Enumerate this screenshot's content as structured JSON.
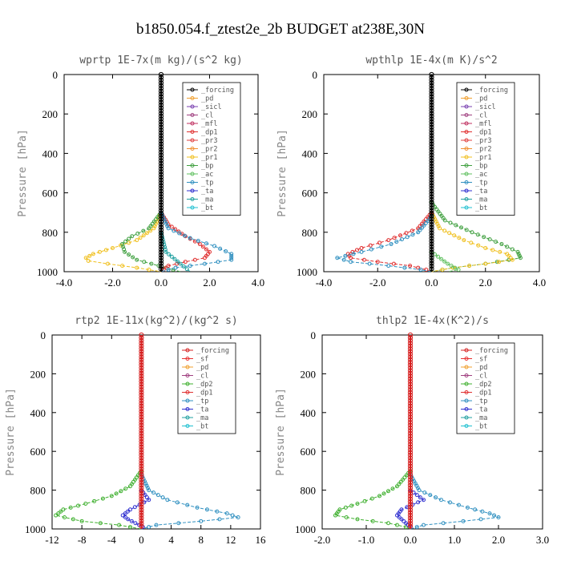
{
  "figure_title": "b1850.054.f_ztest2e_2b  BUDGET at238E,30N",
  "colors": {
    "forcing": "#d62020",
    "sf": "#e83030",
    "pd": "#f0a030",
    "sicl": "#7a40b0",
    "cl": "#a04080",
    "mfl": "#c03060",
    "dp1": "#e03030",
    "dp2": "#40b030",
    "pr1": "#f0c020",
    "pr2": "#f09030",
    "pr3": "#e04040",
    "bp": "#40a040",
    "ac": "#60c060",
    "tp": "#3090c0",
    "ta": "#3030d0",
    "ma": "#20a0a0",
    "bt": "#20c0d0",
    "black": "#000000"
  },
  "chart_data": [
    {
      "type": "line",
      "title": "wprtp  1E-7x(m kg)/(s^2 kg)",
      "ylabel": "Pressure [hPa]",
      "xlim": [
        -4.0,
        4.0
      ],
      "ylim": [
        1000,
        0
      ],
      "xticks": [
        "-4.0",
        "-2.0",
        "0.0",
        "2.0",
        "4.0"
      ],
      "yticks": [
        "0",
        "200",
        "400",
        "600",
        "800",
        "1000"
      ],
      "legend": [
        "_forcing",
        "_pd",
        "_sicl",
        "_cl",
        "_mfl",
        "_dp1",
        "_pr3",
        "_pr2",
        "_pr1",
        "_bp",
        "_ac",
        "_tp",
        "_ta",
        "_ma",
        "_bt"
      ],
      "legend_colors": [
        "black",
        "pd",
        "sicl",
        "cl",
        "mfl",
        "dp1",
        "pr3",
        "pr2",
        "pr1",
        "bp",
        "ac",
        "tp",
        "ta",
        "ma",
        "bt"
      ],
      "series": [
        {
          "name": "_pr1",
          "color": "pr1",
          "p": [
            700,
            780,
            840,
            880,
            910,
            930,
            945,
            960,
            980,
            1000
          ],
          "x": [
            0,
            -0.3,
            -1.0,
            -2.0,
            -2.8,
            -3.1,
            -3.0,
            -2.2,
            -1.0,
            0
          ]
        },
        {
          "name": "_bp",
          "color": "bp",
          "p": [
            700,
            780,
            820,
            860,
            900,
            940,
            960,
            980,
            1000
          ],
          "x": [
            0,
            -0.5,
            -1.2,
            -1.6,
            -1.5,
            -1.0,
            -0.4,
            0.2,
            0.8
          ]
        },
        {
          "name": "_dp1",
          "color": "dp1",
          "p": [
            700,
            760,
            820,
            860,
            900,
            930,
            950,
            970,
            1000
          ],
          "x": [
            0,
            0.3,
            1.0,
            1.6,
            2.0,
            1.8,
            1.0,
            0.3,
            0
          ]
        },
        {
          "name": "_tp",
          "color": "tp",
          "p": [
            700,
            780,
            830,
            870,
            910,
            940,
            960,
            980,
            1000
          ],
          "x": [
            0,
            0.3,
            1.2,
            2.2,
            2.9,
            2.9,
            1.8,
            0.6,
            0
          ]
        },
        {
          "name": "_ma",
          "color": "ma",
          "p": [
            800,
            900,
            960,
            1000
          ],
          "x": [
            0,
            0.2,
            0.8,
            1.2
          ]
        },
        {
          "name": "_forcing",
          "color": "black",
          "p": [
            0,
            1000
          ],
          "x": [
            0,
            0
          ]
        }
      ]
    },
    {
      "type": "line",
      "title": "wpthlp  1E-4x(m K)/s^2",
      "ylabel": "Pressure [hPa]",
      "xlim": [
        -4.0,
        4.0
      ],
      "ylim": [
        1000,
        0
      ],
      "xticks": [
        "-4.0",
        "-2.0",
        "0.0",
        "2.0",
        "4.0"
      ],
      "yticks": [
        "0",
        "200",
        "400",
        "600",
        "800",
        "1000"
      ],
      "legend": [
        "_forcing",
        "_pd",
        "_sicl",
        "_cl",
        "_mfl",
        "_dp1",
        "_pr3",
        "_pr2",
        "_pr1",
        "_bp",
        "_ac",
        "_tp",
        "_ta",
        "_ma",
        "_bt"
      ],
      "legend_colors": [
        "black",
        "pd",
        "sicl",
        "cl",
        "mfl",
        "dp1",
        "pr3",
        "pr2",
        "pr1",
        "bp",
        "ac",
        "tp",
        "ta",
        "ma",
        "bt"
      ],
      "series": [
        {
          "name": "_bp",
          "color": "bp",
          "p": [
            650,
            740,
            800,
            860,
            900,
            930,
            960,
            980,
            1000
          ],
          "x": [
            0,
            0.5,
            1.5,
            2.6,
            3.2,
            3.3,
            2.0,
            0.8,
            0
          ]
        },
        {
          "name": "_pr1",
          "color": "pr1",
          "p": [
            700,
            780,
            840,
            880,
            910,
            940,
            960,
            980,
            1000
          ],
          "x": [
            0,
            0.3,
            1.2,
            2.0,
            2.8,
            3.0,
            2.0,
            0.8,
            0
          ]
        },
        {
          "name": "_dp1",
          "color": "dp1",
          "p": [
            700,
            780,
            840,
            880,
            910,
            930,
            950,
            970,
            990,
            1000
          ],
          "x": [
            0,
            -0.5,
            -1.6,
            -2.6,
            -3.1,
            -3.0,
            -2.0,
            -0.8,
            -0.2,
            0
          ]
        },
        {
          "name": "_tp",
          "color": "tp",
          "p": [
            720,
            800,
            860,
            900,
            930,
            950,
            970,
            990,
            1000
          ],
          "x": [
            0,
            -0.5,
            -1.5,
            -2.6,
            -3.5,
            -3.0,
            -1.6,
            -0.4,
            0
          ]
        },
        {
          "name": "_ac",
          "color": "ac",
          "p": [
            900,
            960,
            990,
            1000
          ],
          "x": [
            0,
            0.6,
            1.0,
            0.6
          ]
        },
        {
          "name": "_forcing",
          "color": "black",
          "p": [
            0,
            1000
          ],
          "x": [
            0,
            0
          ]
        }
      ]
    },
    {
      "type": "line",
      "title": "rtp2  1E-11x(kg^2)/(kg^2 s)",
      "ylabel": "Pressure [hPa]",
      "xlim": [
        -12,
        16
      ],
      "ylim": [
        1000,
        0
      ],
      "xticks": [
        "-12",
        "-8",
        "-4",
        "0",
        "4",
        "8",
        "12",
        "16"
      ],
      "yticks": [
        "0",
        "200",
        "400",
        "600",
        "800",
        "1000"
      ],
      "legend": [
        "_forcing",
        "_sf",
        "_pd",
        "_cl",
        "_dp2",
        "_dp1",
        "_tp",
        "_ta",
        "_ma",
        "_bt"
      ],
      "legend_colors": [
        "forcing",
        "sf",
        "pd",
        "cl",
        "dp2",
        "dp1",
        "tp",
        "ta",
        "ma",
        "bt"
      ],
      "series": [
        {
          "name": "_dp2",
          "color": "dp2",
          "p": [
            700,
            780,
            830,
            870,
            900,
            930,
            960,
            980,
            1000
          ],
          "x": [
            0,
            -1.5,
            -4.0,
            -7.5,
            -10.5,
            -11.5,
            -8.0,
            -3.0,
            0
          ]
        },
        {
          "name": "_tp",
          "color": "tp",
          "p": [
            720,
            800,
            850,
            890,
            920,
            940,
            960,
            980,
            1000
          ],
          "x": [
            0,
            1.0,
            3.5,
            7.5,
            11.5,
            13.0,
            8.0,
            2.0,
            0
          ]
        },
        {
          "name": "_ta",
          "color": "ta",
          "p": [
            800,
            850,
            900,
            930,
            950,
            970,
            990,
            1000
          ],
          "x": [
            0,
            1.0,
            -1.5,
            -2.5,
            -1.8,
            -0.8,
            0.2,
            0
          ]
        },
        {
          "name": "_forcing",
          "color": "forcing",
          "p": [
            0,
            1000
          ],
          "x": [
            0,
            0
          ]
        }
      ]
    },
    {
      "type": "line",
      "title": "thlp2  1E-4x(K^2)/s",
      "ylabel": "Pressure [hPa]",
      "xlim": [
        -2.0,
        3.0
      ],
      "ylim": [
        1000,
        0
      ],
      "xticks": [
        "-2.0",
        "-1.0",
        "0.0",
        "1.0",
        "2.0",
        "3.0"
      ],
      "yticks": [
        "0",
        "200",
        "400",
        "600",
        "800",
        "1000"
      ],
      "legend": [
        "_forcing",
        "_sf",
        "_pd",
        "_cl",
        "_dp2",
        "_dp1",
        "_tp",
        "_ta",
        "_ma",
        "_bt"
      ],
      "legend_colors": [
        "forcing",
        "sf",
        "pd",
        "cl",
        "dp2",
        "dp1",
        "tp",
        "ta",
        "ma",
        "bt"
      ],
      "series": [
        {
          "name": "_dp2",
          "color": "dp2",
          "p": [
            700,
            780,
            830,
            870,
            900,
            930,
            950,
            970,
            990,
            1000
          ],
          "x": [
            0,
            -0.3,
            -0.7,
            -1.2,
            -1.6,
            -1.7,
            -1.2,
            -0.5,
            -0.1,
            0
          ]
        },
        {
          "name": "_tp",
          "color": "tp",
          "p": [
            720,
            800,
            850,
            890,
            920,
            940,
            960,
            980,
            1000
          ],
          "x": [
            0,
            0.2,
            0.7,
            1.3,
            1.8,
            2.0,
            1.2,
            0.3,
            0
          ]
        },
        {
          "name": "_ta",
          "color": "ta",
          "p": [
            800,
            850,
            900,
            930,
            950,
            970,
            990,
            1000
          ],
          "x": [
            0,
            0.3,
            -0.2,
            -0.3,
            -0.2,
            -0.1,
            0,
            0
          ]
        },
        {
          "name": "_forcing",
          "color": "forcing",
          "p": [
            0,
            1000
          ],
          "x": [
            0,
            0
          ]
        }
      ]
    }
  ]
}
